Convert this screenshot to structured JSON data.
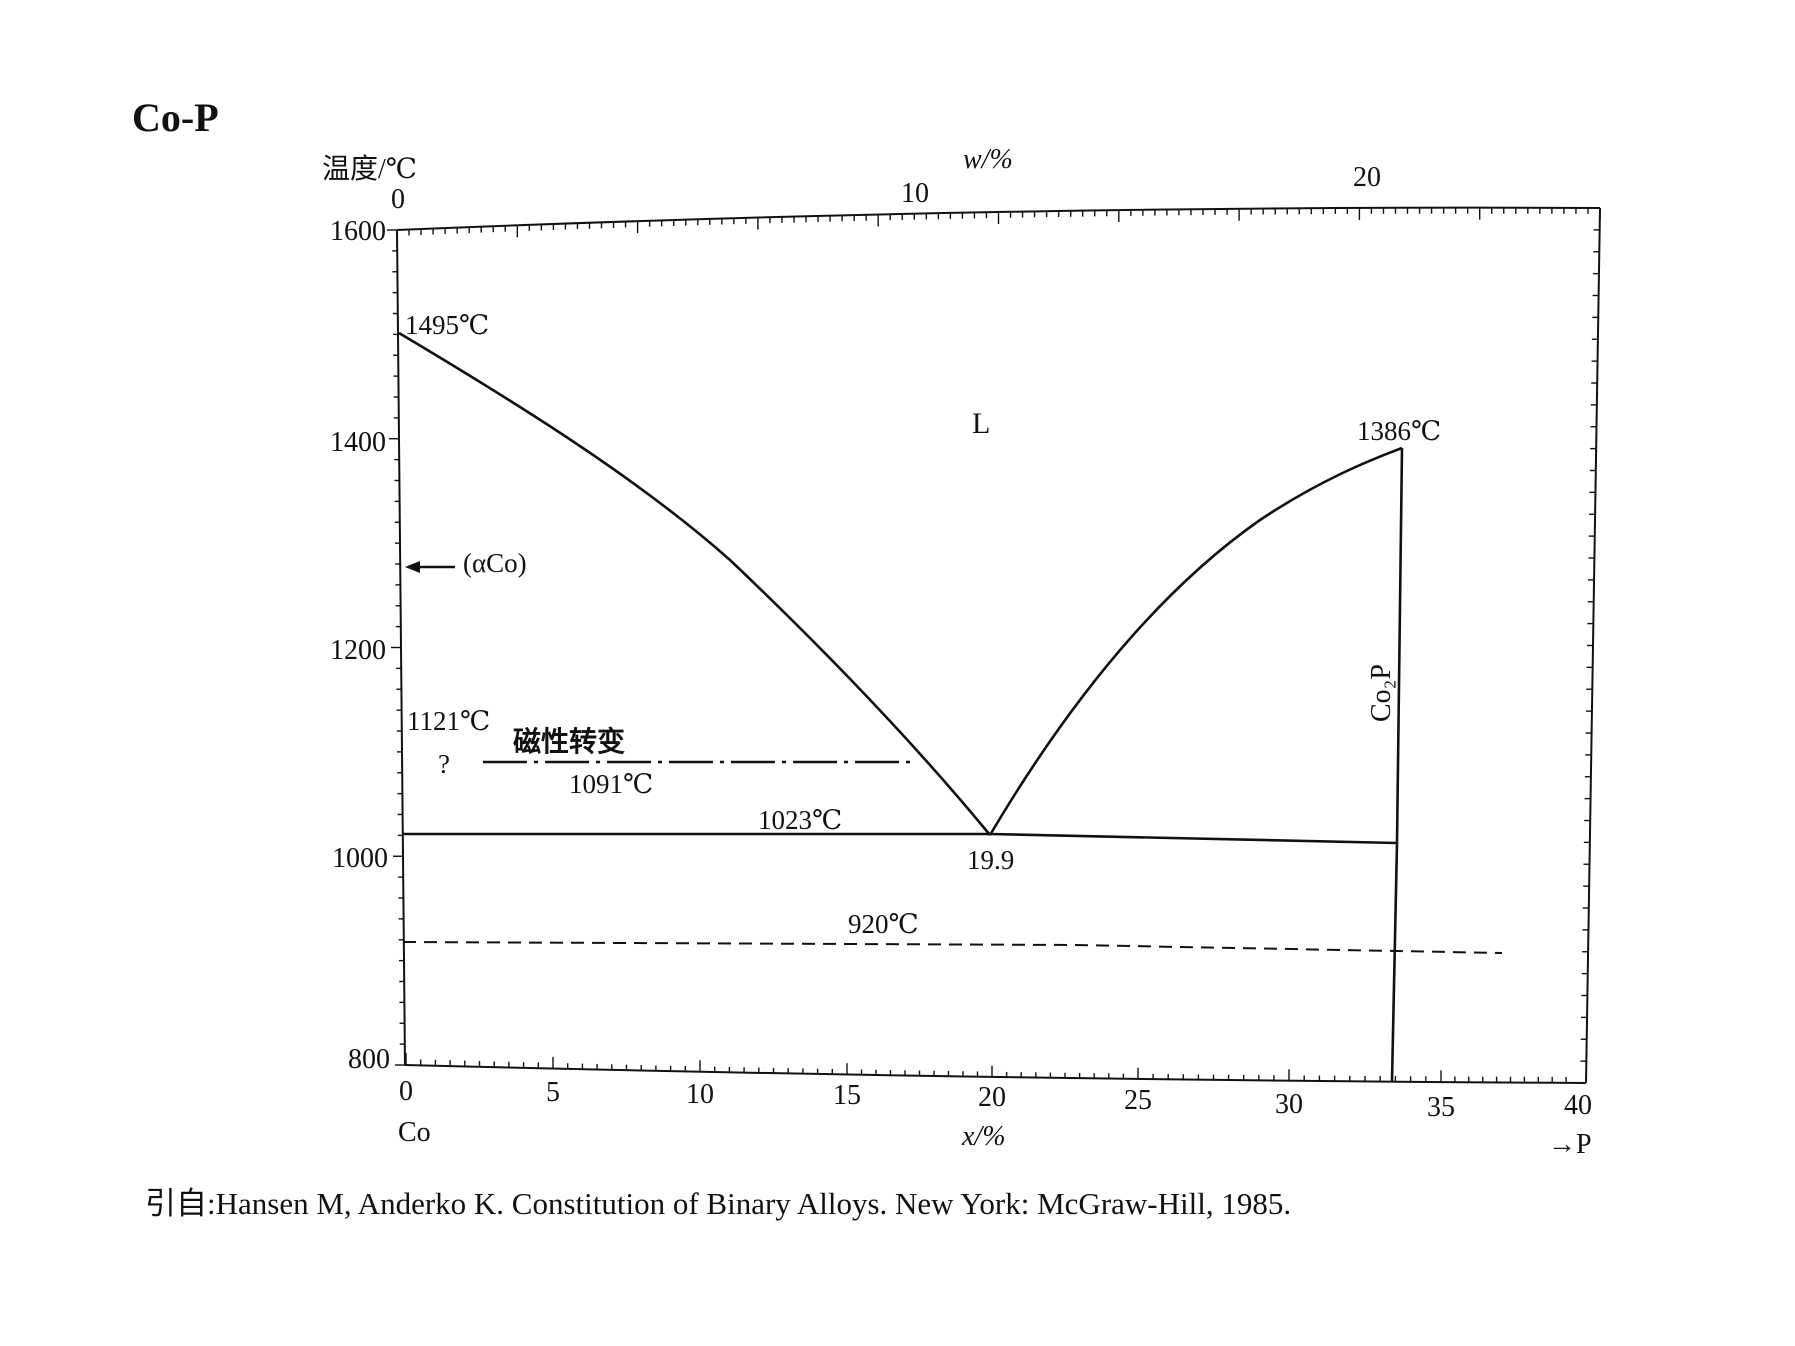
{
  "title": "Co-P",
  "caption": "引自:Hansen M, Anderko K. Constitution of Binary Alloys. New York: McGraw-Hill, 1985.",
  "axes": {
    "y_title": "温度/℃",
    "y_ticks": [
      "1600",
      "1400",
      "1200",
      "1000",
      "800"
    ],
    "bottom_title": "x/%",
    "bottom_ticks": [
      "0",
      "5",
      "10",
      "15",
      "20",
      "25",
      "30",
      "35",
      "40"
    ],
    "bottom_left_label": "Co",
    "bottom_right_label": "→P",
    "top_title": "w/%",
    "top_ticks": [
      "0",
      "10",
      "20"
    ]
  },
  "labels": {
    "liquid": "L",
    "co_melting": "1495℃",
    "co2p_melting": "1386℃",
    "alpha_co": "(αCo)",
    "temp_1121": "1121℃",
    "question": "?",
    "magnetic": "磁性转变",
    "temp_1091": "1091℃",
    "eutectic_temp": "1023℃",
    "eutectic_comp": "19.9",
    "temp_920": "920℃",
    "compound": "Co₂P"
  },
  "chart_data": {
    "type": "phase-diagram",
    "x_axis": {
      "label": "x/%",
      "range": [
        0,
        40
      ]
    },
    "y_axis": {
      "label": "温度/℃",
      "range": [
        800,
        1600
      ]
    },
    "top_axis": {
      "label": "w/%",
      "ticks": [
        0,
        10,
        20
      ]
    },
    "points": {
      "co_melting": {
        "x": 0,
        "y": 1495
      },
      "eutectic": {
        "x": 19.9,
        "y": 1023
      },
      "co2p_melting": {
        "x": 33.3,
        "y": 1386
      }
    },
    "curves": {
      "liquidus_left": [
        [
          0,
          1495
        ],
        [
          5,
          1408
        ],
        [
          10,
          1310
        ],
        [
          15,
          1195
        ],
        [
          19.9,
          1023
        ]
      ],
      "liquidus_right": [
        [
          19.9,
          1023
        ],
        [
          23,
          1170
        ],
        [
          26,
          1262
        ],
        [
          29,
          1322
        ],
        [
          33.3,
          1386
        ]
      ]
    },
    "horizontal_lines": [
      {
        "name": "eutectic",
        "y": 1023,
        "x": [
          0,
          33.3
        ],
        "style": "solid"
      },
      {
        "name": "magnetic",
        "y": 1091,
        "x": [
          2.6,
          17.5
        ],
        "style": "dash-dot"
      },
      {
        "name": "920",
        "y": 920,
        "x": [
          0,
          37.5
        ],
        "style": "dashed"
      }
    ],
    "compound_line": {
      "name": "Co2P",
      "x": 33.3,
      "y": [
        800,
        1386
      ]
    }
  }
}
